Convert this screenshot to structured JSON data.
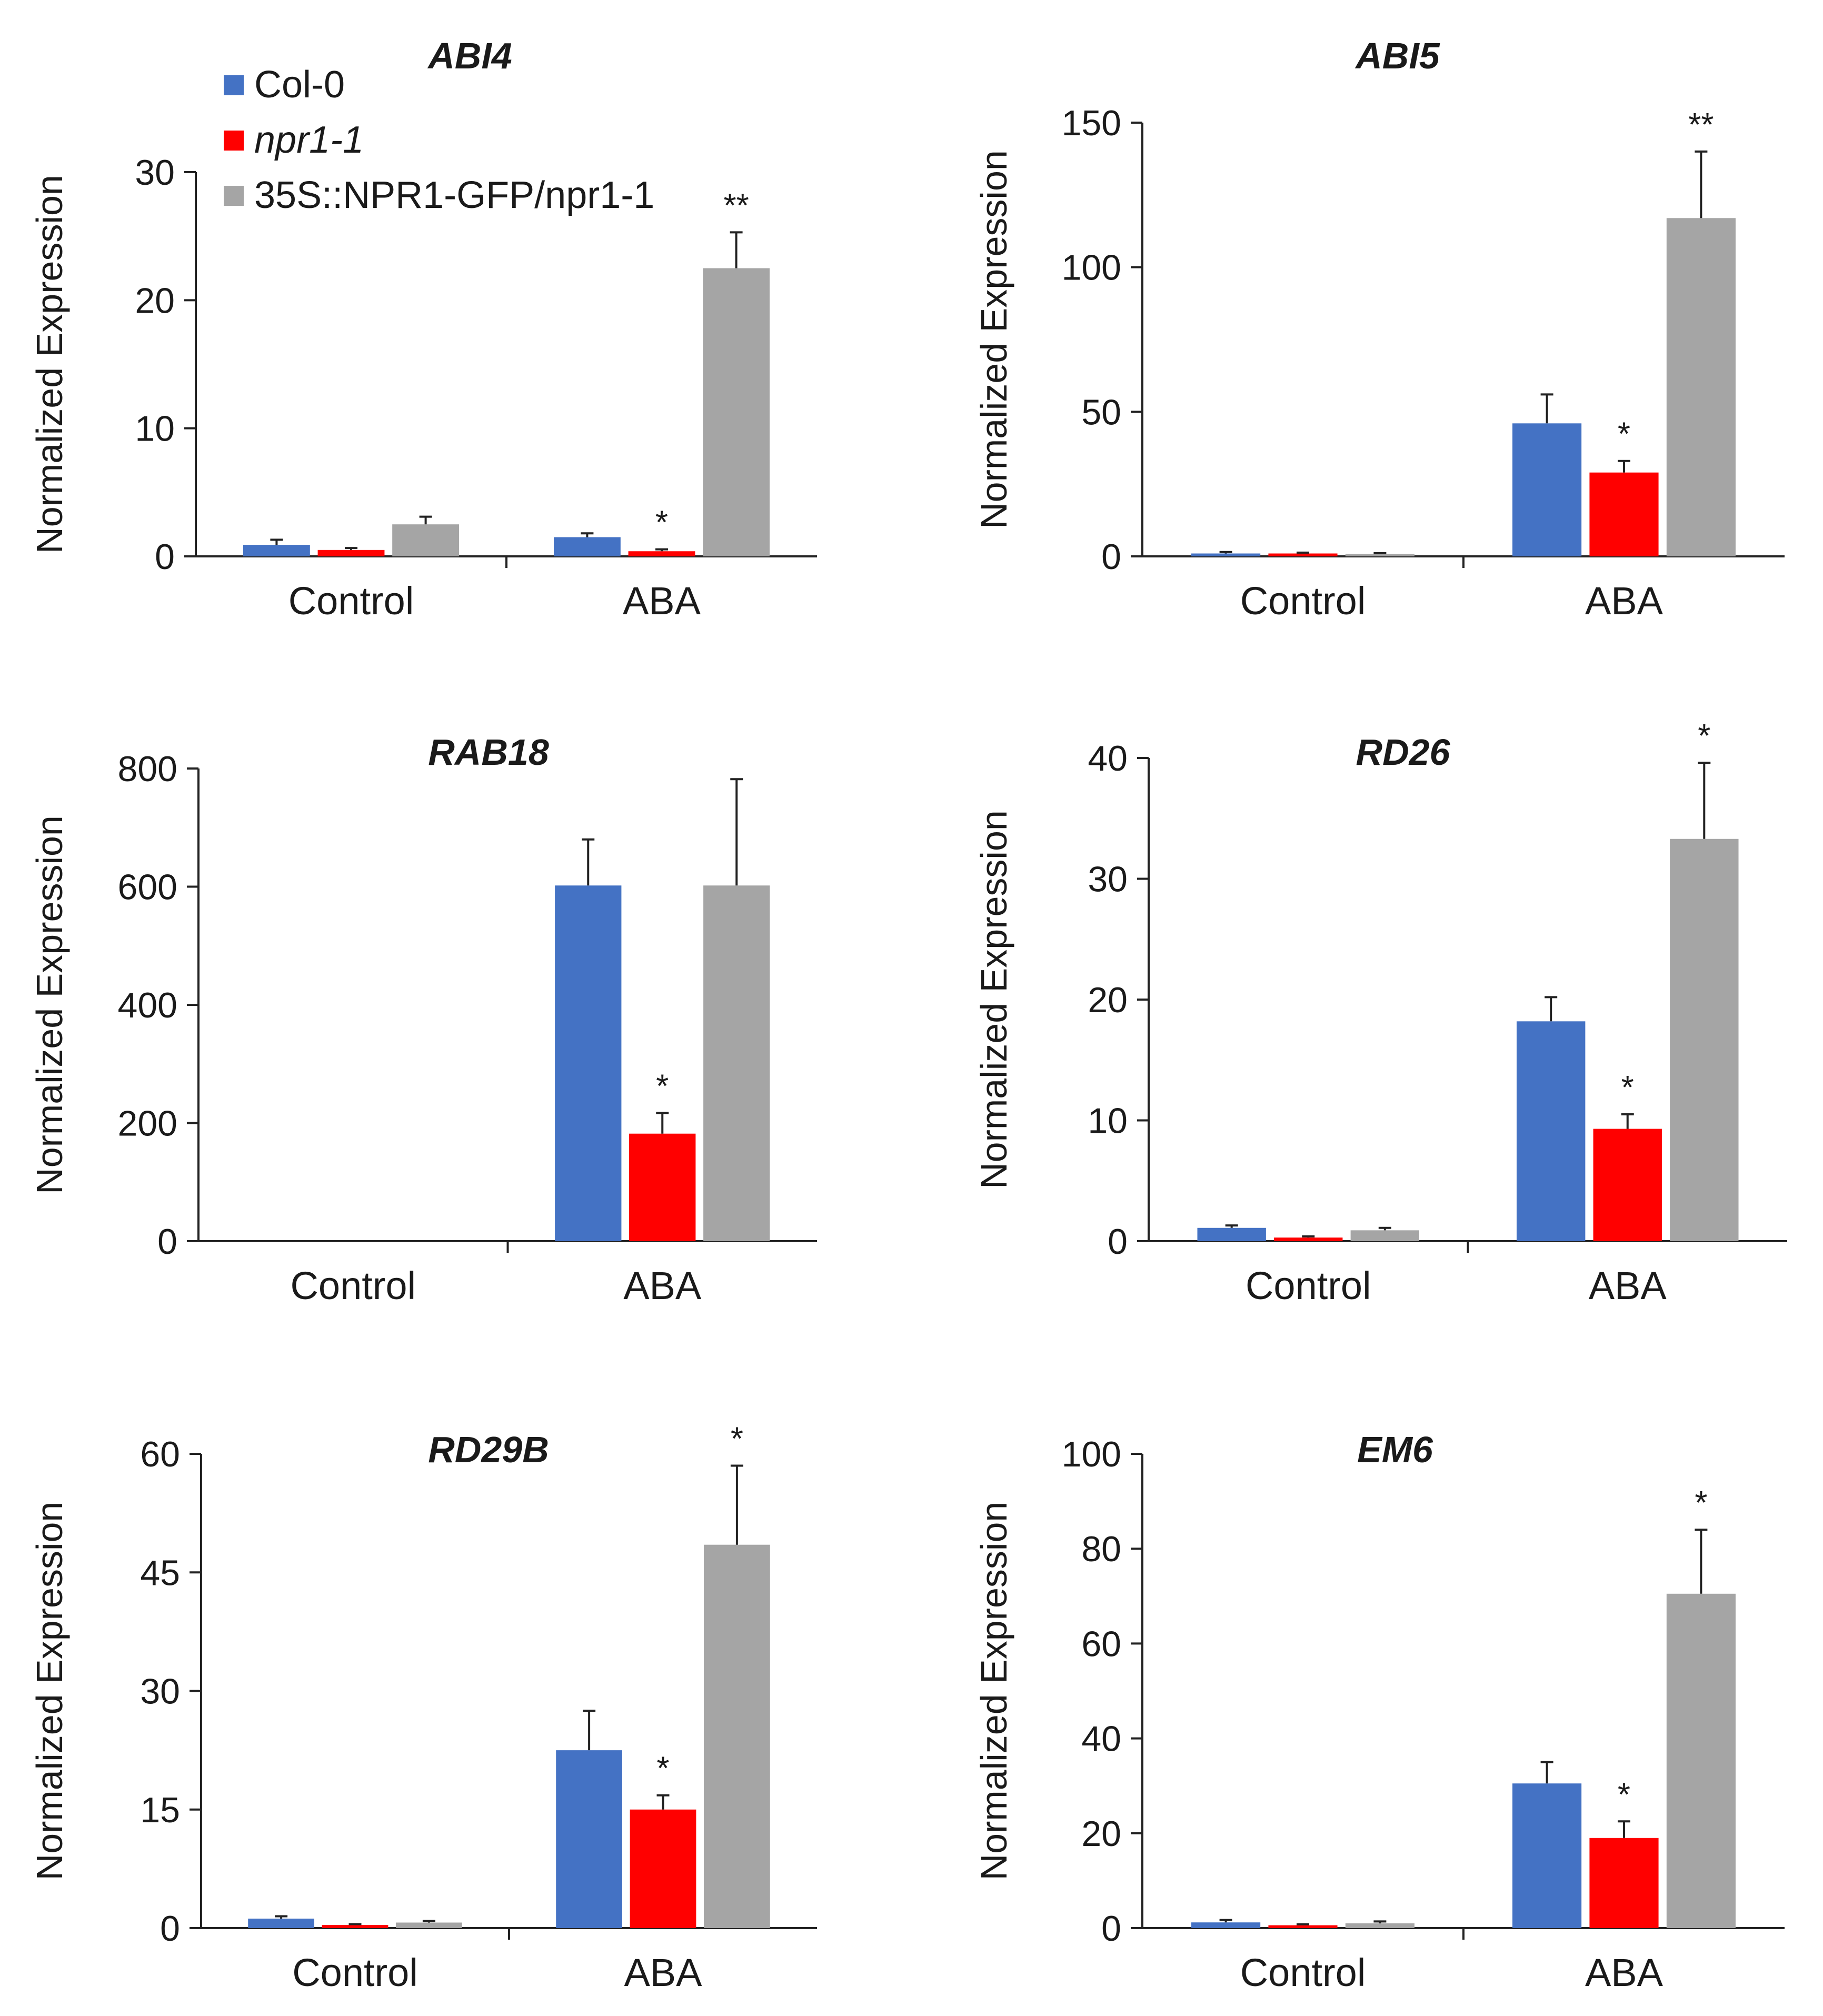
{
  "colors": {
    "col0": "#4472C4",
    "npr1": "#FF0000",
    "ntg": "#A5A5A5"
  },
  "legend": [
    {
      "label": "Col-0",
      "italic": false,
      "color": "#4472C4"
    },
    {
      "label": "npr1-1",
      "italic": true,
      "color": "#FF0000"
    },
    {
      "label": "35S::NPR1-GFP/npr1-1",
      "italic": false,
      "color": "#A5A5A5"
    }
  ],
  "chart_data": [
    {
      "type": "bar",
      "title": "ABI4",
      "ylabel": "Normalized Expression",
      "categories": [
        "Control",
        "ABA"
      ],
      "ylim": [
        0,
        30
      ],
      "yticks": [
        0,
        10,
        20,
        30
      ],
      "series": [
        {
          "name": "Col-0",
          "values": [
            0.9,
            1.5
          ],
          "errors": [
            0.4,
            0.3
          ],
          "sig": [
            "",
            ""
          ]
        },
        {
          "name": "npr1-1",
          "values": [
            0.5,
            0.4
          ],
          "errors": [
            0.15,
            0.15
          ],
          "sig": [
            "",
            "*"
          ]
        },
        {
          "name": "35S::NPR1-GFP/npr1-1",
          "values": [
            2.5,
            22.5
          ],
          "errors": [
            0.6,
            2.8
          ],
          "sig": [
            "",
            "**"
          ]
        }
      ]
    },
    {
      "type": "bar",
      "title": "ABI5",
      "ylabel": "Normalized Expression",
      "categories": [
        "Control",
        "ABA"
      ],
      "ylim": [
        0,
        150
      ],
      "yticks": [
        0,
        50,
        100,
        150
      ],
      "series": [
        {
          "name": "Col-0",
          "values": [
            1.0,
            46
          ],
          "errors": [
            0.5,
            10
          ],
          "sig": [
            "",
            ""
          ]
        },
        {
          "name": "npr1-1",
          "values": [
            1.0,
            29
          ],
          "errors": [
            0.3,
            4
          ],
          "sig": [
            "",
            "*"
          ]
        },
        {
          "name": "35S::NPR1-GFP/npr1-1",
          "values": [
            0.8,
            117
          ],
          "errors": [
            0.3,
            23
          ],
          "sig": [
            "",
            "**"
          ]
        }
      ]
    },
    {
      "type": "bar",
      "title": "RAB18",
      "ylabel": "Normalized Expression",
      "categories": [
        "Control",
        "ABA"
      ],
      "ylim": [
        0,
        800
      ],
      "yticks": [
        0,
        200,
        400,
        600,
        800
      ],
      "series": [
        {
          "name": "Col-0",
          "values": [
            0,
            602
          ],
          "errors": [
            0,
            78
          ],
          "sig": [
            "",
            ""
          ]
        },
        {
          "name": "npr1-1",
          "values": [
            0,
            182
          ],
          "errors": [
            0,
            35
          ],
          "sig": [
            "",
            "*"
          ]
        },
        {
          "name": "35S::NPR1-GFP/npr1-1",
          "values": [
            0,
            602
          ],
          "errors": [
            0,
            180
          ],
          "sig": [
            "",
            ""
          ]
        }
      ]
    },
    {
      "type": "bar",
      "title": "RD26",
      "ylabel": "Normalized Expression",
      "categories": [
        "Control",
        "ABA"
      ],
      "ylim": [
        0,
        40
      ],
      "yticks": [
        0,
        10,
        20,
        30,
        40
      ],
      "series": [
        {
          "name": "Col-0",
          "values": [
            1.1,
            18.2
          ],
          "errors": [
            0.2,
            2.0
          ],
          "sig": [
            "",
            ""
          ]
        },
        {
          "name": "npr1-1",
          "values": [
            0.3,
            9.3
          ],
          "errors": [
            0.1,
            1.2
          ],
          "sig": [
            "",
            "*"
          ]
        },
        {
          "name": "35S::NPR1-GFP/npr1-1",
          "values": [
            0.9,
            33.3
          ],
          "errors": [
            0.2,
            6.3
          ],
          "sig": [
            "",
            "*"
          ]
        }
      ]
    },
    {
      "type": "bar",
      "title": "RD29B",
      "ylabel": "Normalized Expression",
      "categories": [
        "Control",
        "ABA"
      ],
      "ylim": [
        0,
        60
      ],
      "yticks": [
        0,
        15,
        30,
        45,
        60
      ],
      "series": [
        {
          "name": "Col-0",
          "values": [
            1.2,
            22.5
          ],
          "errors": [
            0.3,
            5.0
          ],
          "sig": [
            "",
            ""
          ]
        },
        {
          "name": "npr1-1",
          "values": [
            0.4,
            15.0
          ],
          "errors": [
            0.1,
            1.8
          ],
          "sig": [
            "",
            "*"
          ]
        },
        {
          "name": "35S::NPR1-GFP/npr1-1",
          "values": [
            0.7,
            48.5
          ],
          "errors": [
            0.2,
            10.0
          ],
          "sig": [
            "",
            "*"
          ]
        }
      ]
    },
    {
      "type": "bar",
      "title": "EM6",
      "ylabel": "Normalized Expression",
      "categories": [
        "Control",
        "ABA"
      ],
      "ylim": [
        0,
        100
      ],
      "yticks": [
        0,
        20,
        40,
        60,
        80,
        100
      ],
      "series": [
        {
          "name": "Col-0",
          "values": [
            1.2,
            30.5
          ],
          "errors": [
            0.5,
            4.5
          ],
          "sig": [
            "",
            ""
          ]
        },
        {
          "name": "npr1-1",
          "values": [
            0.6,
            19.0
          ],
          "errors": [
            0.2,
            3.5
          ],
          "sig": [
            "",
            "*"
          ]
        },
        {
          "name": "35S::NPR1-GFP/npr1-1",
          "values": [
            1.0,
            70.5
          ],
          "errors": [
            0.4,
            13.5
          ],
          "sig": [
            "",
            "*"
          ]
        }
      ]
    }
  ]
}
